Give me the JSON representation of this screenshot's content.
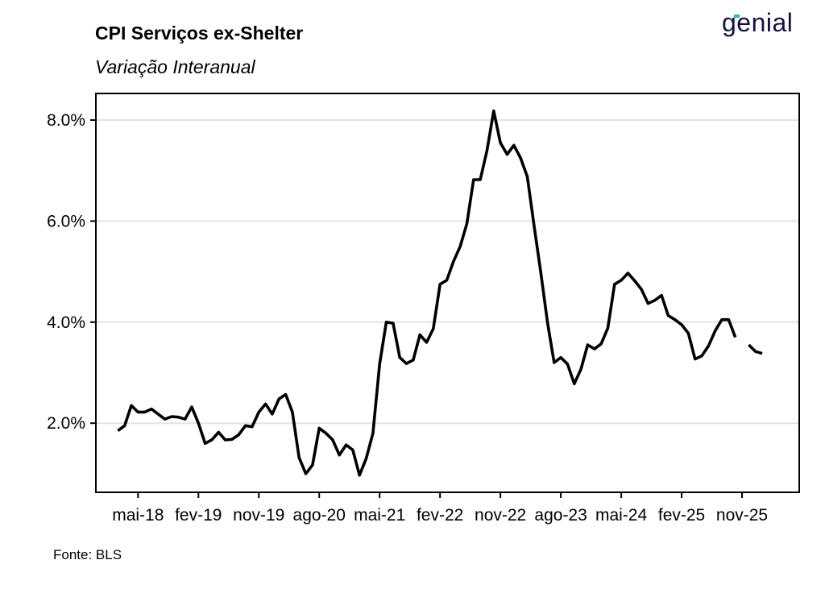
{
  "header": {
    "title": "CPI Serviços ex-Shelter",
    "subtitle": "Variação Interanual",
    "logo_text": "genial",
    "logo_color": "#15123d",
    "logo_accent_color": "#27b6c9"
  },
  "footer": {
    "source": "Fonte: BLS"
  },
  "chart_data": {
    "type": "line",
    "title": "CPI Serviços ex-Shelter",
    "subtitle": "Variação Interanual",
    "xlabel": "",
    "ylabel": "",
    "ylim": [
      0.7,
      8.8
    ],
    "y_unit": "%",
    "grid": "horizontal",
    "line_color": "#000000",
    "x_start": "2018-01",
    "x_end": "2026-01",
    "x_ticks": [
      {
        "date": "2018-05",
        "label": "mai-18"
      },
      {
        "date": "2019-02",
        "label": "fev-19"
      },
      {
        "date": "2019-11",
        "label": "nov-19"
      },
      {
        "date": "2020-08",
        "label": "ago-20"
      },
      {
        "date": "2021-05",
        "label": "mai-21"
      },
      {
        "date": "2022-02",
        "label": "fev-22"
      },
      {
        "date": "2022-11",
        "label": "nov-22"
      },
      {
        "date": "2023-08",
        "label": "ago-23"
      },
      {
        "date": "2024-05",
        "label": "mai-24"
      },
      {
        "date": "2025-02",
        "label": "fev-25"
      },
      {
        "date": "2025-11",
        "label": "nov-25"
      }
    ],
    "y_ticks": [
      {
        "value": 2.0,
        "label": "2.0%"
      },
      {
        "value": 4.0,
        "label": "4.0%"
      },
      {
        "value": 6.0,
        "label": "6.0%"
      },
      {
        "value": 8.0,
        "label": "8.0%"
      }
    ],
    "series": [
      {
        "points": [
          [
            "2018-02",
            1.85
          ],
          [
            "2018-03",
            1.95
          ],
          [
            "2018-04",
            2.35
          ],
          [
            "2018-05",
            2.22
          ],
          [
            "2018-06",
            2.22
          ],
          [
            "2018-07",
            2.28
          ],
          [
            "2018-08",
            2.18
          ],
          [
            "2018-09",
            2.08
          ],
          [
            "2018-10",
            2.13
          ],
          [
            "2018-11",
            2.12
          ],
          [
            "2018-12",
            2.08
          ],
          [
            "2019-01",
            2.32
          ],
          [
            "2019-02",
            2.0
          ],
          [
            "2019-03",
            1.6
          ],
          [
            "2019-04",
            1.67
          ],
          [
            "2019-05",
            1.82
          ],
          [
            "2019-06",
            1.67
          ],
          [
            "2019-07",
            1.68
          ],
          [
            "2019-08",
            1.77
          ],
          [
            "2019-09",
            1.95
          ],
          [
            "2019-10",
            1.93
          ],
          [
            "2019-11",
            2.22
          ],
          [
            "2019-12",
            2.38
          ],
          [
            "2020-01",
            2.18
          ],
          [
            "2020-02",
            2.48
          ],
          [
            "2020-03",
            2.57
          ],
          [
            "2020-04",
            2.22
          ],
          [
            "2020-05",
            1.32
          ],
          [
            "2020-06",
            1.0
          ],
          [
            "2020-07",
            1.17
          ],
          [
            "2020-08",
            1.9
          ],
          [
            "2020-09",
            1.8
          ],
          [
            "2020-10",
            1.67
          ],
          [
            "2020-11",
            1.37
          ],
          [
            "2020-12",
            1.57
          ],
          [
            "2021-01",
            1.47
          ],
          [
            "2021-02",
            0.97
          ],
          [
            "2021-03",
            1.3
          ],
          [
            "2021-04",
            1.8
          ],
          [
            "2021-05",
            3.17
          ],
          [
            "2021-06",
            4.0
          ],
          [
            "2021-07",
            3.98
          ],
          [
            "2021-08",
            3.3
          ],
          [
            "2021-09",
            3.18
          ],
          [
            "2021-10",
            3.25
          ],
          [
            "2021-11",
            3.75
          ],
          [
            "2021-12",
            3.6
          ],
          [
            "2022-01",
            3.87
          ],
          [
            "2022-02",
            4.75
          ],
          [
            "2022-03",
            4.83
          ],
          [
            "2022-04",
            5.2
          ],
          [
            "2022-05",
            5.5
          ],
          [
            "2022-06",
            5.95
          ],
          [
            "2022-07",
            6.82
          ],
          [
            "2022-08",
            6.82
          ],
          [
            "2022-09",
            7.4
          ],
          [
            "2022-10",
            8.18
          ],
          [
            "2022-11",
            7.55
          ],
          [
            "2022-12",
            7.32
          ],
          [
            "2023-01",
            7.5
          ],
          [
            "2023-02",
            7.25
          ],
          [
            "2023-03",
            6.88
          ],
          [
            "2023-04",
            5.92
          ],
          [
            "2023-05",
            5.0
          ],
          [
            "2023-06",
            4.0
          ],
          [
            "2023-07",
            3.2
          ],
          [
            "2023-08",
            3.3
          ],
          [
            "2023-09",
            3.17
          ],
          [
            "2023-10",
            2.78
          ],
          [
            "2023-11",
            3.07
          ],
          [
            "2023-12",
            3.55
          ],
          [
            "2024-01",
            3.47
          ],
          [
            "2024-02",
            3.57
          ],
          [
            "2024-03",
            3.88
          ],
          [
            "2024-04",
            4.75
          ],
          [
            "2024-05",
            4.83
          ],
          [
            "2024-06",
            4.97
          ],
          [
            "2024-07",
            4.82
          ],
          [
            "2024-08",
            4.65
          ],
          [
            "2024-09",
            4.37
          ],
          [
            "2024-10",
            4.43
          ],
          [
            "2024-11",
            4.53
          ],
          [
            "2024-12",
            4.13
          ],
          [
            "2025-01",
            4.05
          ],
          [
            "2025-02",
            3.95
          ],
          [
            "2025-03",
            3.78
          ],
          [
            "2025-04",
            3.27
          ],
          [
            "2025-05",
            3.33
          ],
          [
            "2025-06",
            3.53
          ],
          [
            "2025-07",
            3.83
          ],
          [
            "2025-08",
            4.05
          ],
          [
            "2025-09",
            4.05
          ],
          [
            "2025-10",
            3.7
          ],
          [
            "2025-11",
            null
          ],
          [
            "2025-12",
            3.55
          ],
          [
            "2026-01",
            3.42
          ],
          [
            "2026-02",
            3.38
          ]
        ]
      }
    ]
  }
}
